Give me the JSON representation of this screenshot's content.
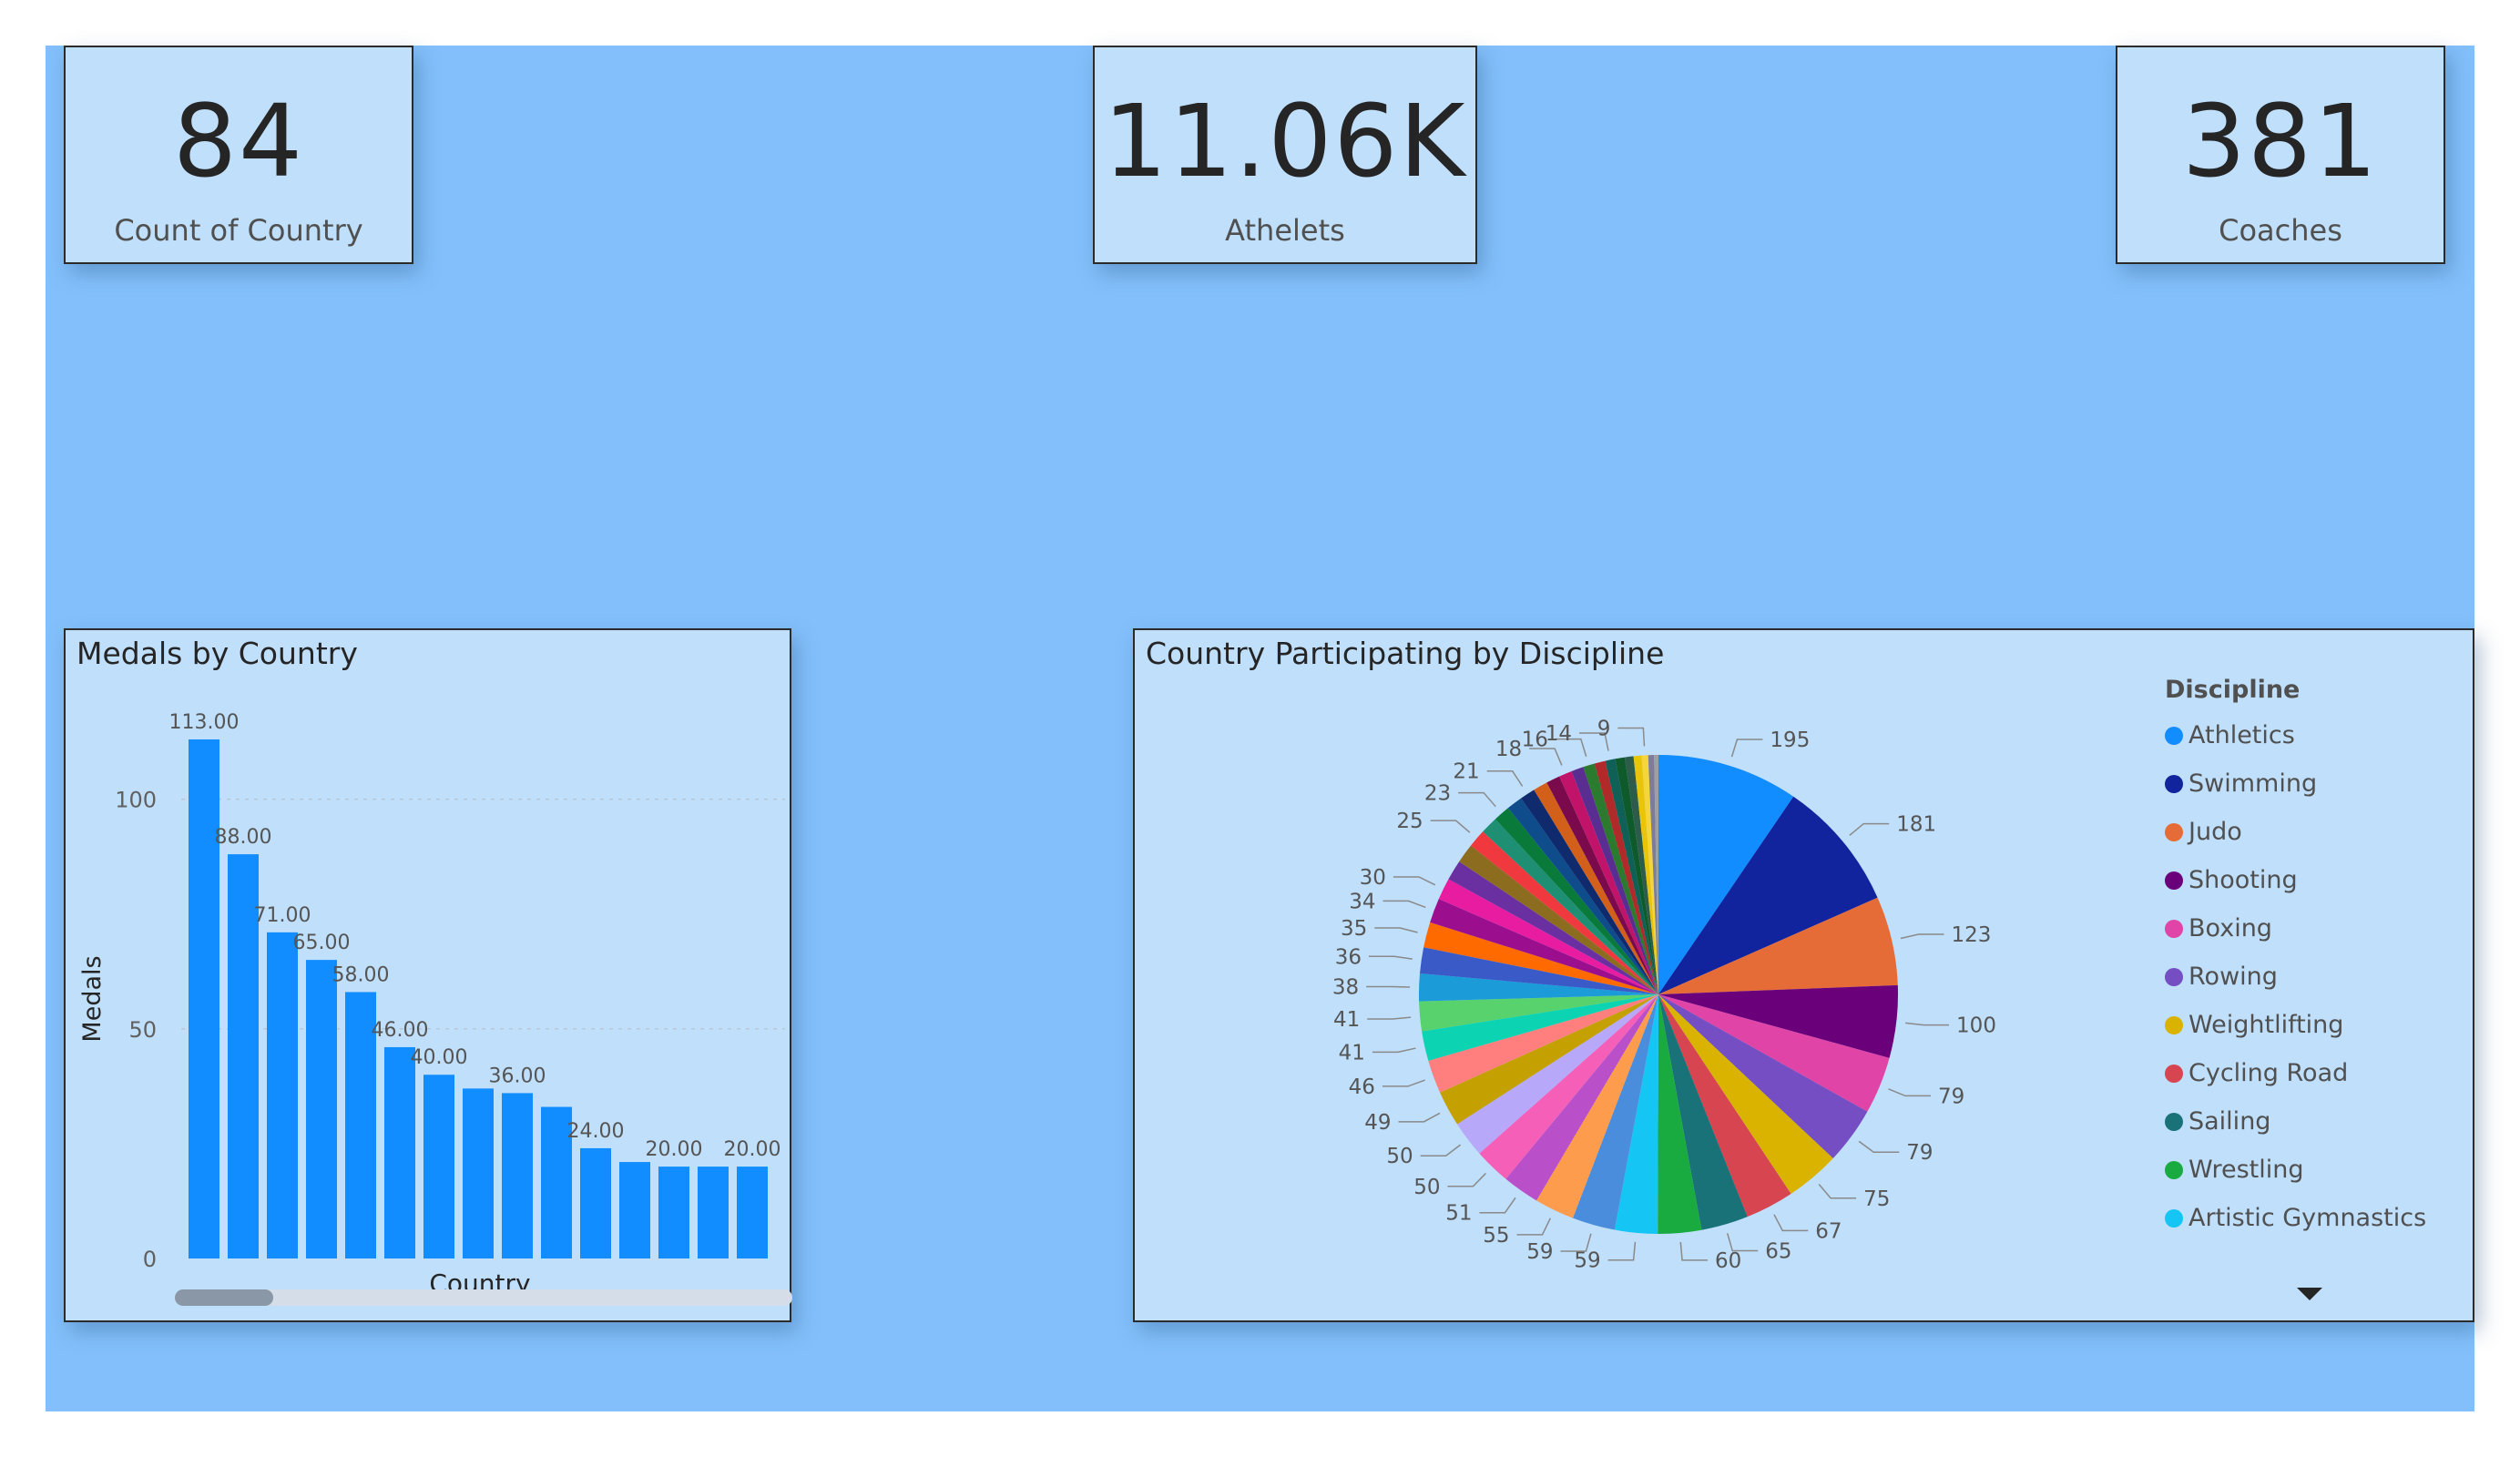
{
  "kpis": [
    {
      "value": "84",
      "label": "Count of Country"
    },
    {
      "value": "11.06K",
      "label": "Athelets"
    },
    {
      "value": "381",
      "label": "Coaches"
    }
  ],
  "medals_chart": {
    "title": "Medals by Country",
    "xlabel": "Country",
    "ylabel": "Medals",
    "bar_color": "#118dff",
    "chart_data": {
      "type": "bar",
      "title": "Medals by Country",
      "xlabel": "Country",
      "ylabel": "Medals",
      "ylim": [
        0,
        113
      ],
      "yticks": [
        0,
        50,
        100
      ],
      "grid": true,
      "values": [
        113,
        88,
        71,
        65,
        58,
        46,
        40,
        37,
        36,
        33,
        24,
        21,
        20,
        20,
        20
      ],
      "data_labels": [
        "113.00",
        "88.00",
        "71.00",
        "65.00",
        "58.00",
        "46.00",
        "40.00",
        "",
        "36.00",
        "",
        "24.00",
        "",
        "20.00",
        "",
        "20.00"
      ]
    }
  },
  "discipline_chart": {
    "title": "Country Participating by Discipline",
    "legend_title": "Discipline",
    "legend": [
      {
        "label": "Athletics",
        "color": "#118dff"
      },
      {
        "label": "Swimming",
        "color": "#12239e"
      },
      {
        "label": "Judo",
        "color": "#e66c37"
      },
      {
        "label": "Shooting",
        "color": "#6b007b"
      },
      {
        "label": "Boxing",
        "color": "#e044a7"
      },
      {
        "label": "Rowing",
        "color": "#744ec2"
      },
      {
        "label": "Weightlifting",
        "color": "#d9b300"
      },
      {
        "label": "Cycling Road",
        "color": "#d64550"
      },
      {
        "label": "Sailing",
        "color": "#197278"
      },
      {
        "label": "Wrestling",
        "color": "#1aab40"
      },
      {
        "label": "Artistic Gymnastics",
        "color": "#15c6f4"
      }
    ],
    "chart_data": {
      "type": "pie",
      "title": "Country Participating by Discipline",
      "legend_position": "right",
      "values": [
        195,
        181,
        123,
        100,
        79,
        79,
        75,
        67,
        65,
        60,
        59,
        59,
        55,
        51,
        50,
        50,
        49,
        46,
        41,
        41,
        38,
        36,
        35,
        34,
        30,
        28,
        27,
        25,
        24,
        23,
        22,
        21,
        20,
        19,
        18,
        17,
        16,
        15,
        14,
        13,
        12,
        11,
        9,
        8,
        6
      ],
      "data_labels": [
        "195",
        "181",
        "123",
        "100",
        "79",
        "79",
        "75",
        "67",
        "65",
        "60",
        "59",
        "59",
        "55",
        "51",
        "50",
        "50",
        "49",
        "46",
        "41",
        "41",
        "38",
        "36",
        "35",
        "34",
        "30",
        "",
        "",
        "25",
        "",
        "23",
        "",
        "21",
        "",
        "",
        "18",
        "",
        "16",
        "",
        "14",
        "",
        "",
        "",
        "9",
        "",
        ""
      ],
      "colors": [
        "#118dff",
        "#12239e",
        "#e66c37",
        "#6b007b",
        "#e044a7",
        "#744ec2",
        "#d9b300",
        "#d64550",
        "#197278",
        "#1aab40",
        "#15c6f4",
        "#4a8ddc",
        "#fe9c4d",
        "#b94fc9",
        "#f65fb8",
        "#b7a8fa",
        "#c4a000",
        "#ff7f7f",
        "#0cd4b2",
        "#57d26d",
        "#1b9bd7",
        "#3a5bc7",
        "#ff6a00",
        "#9b0f8f",
        "#e81ca0",
        "#6a2fa0",
        "#8c6d1f",
        "#f0383f",
        "#1e8f73",
        "#0a7a3a",
        "#0f4c8c",
        "#102a6e",
        "#d2601a",
        "#7a0a4c",
        "#c2136b",
        "#5a2d91",
        "#2b7a2e",
        "#b02a2a",
        "#0f6157",
        "#0e5a2a",
        "#2d5d4a",
        "#e8c40a",
        "#f4d63a",
        "#7d7d9b",
        "#9aa0a6"
      ]
    }
  }
}
